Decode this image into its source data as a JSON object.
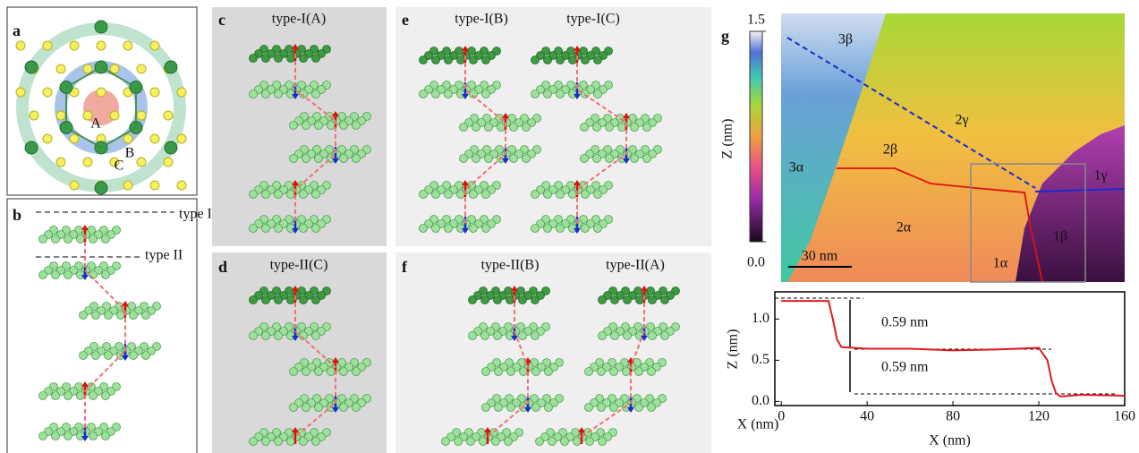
{
  "panels": {
    "a": {
      "label": "a",
      "sites": [
        "A",
        "B",
        "C"
      ]
    },
    "b": {
      "label": "b",
      "lines": [
        "type I",
        "type II"
      ]
    },
    "c": {
      "label": "c",
      "title": "type-I(A)"
    },
    "d": {
      "label": "d",
      "title": "type-II(C)"
    },
    "e": {
      "label": "e",
      "titles": [
        "type-I(B)",
        "type-I(C)"
      ]
    },
    "f": {
      "label": "f",
      "titles": [
        "type-II(B)",
        "type-II(A)"
      ]
    },
    "g": {
      "label": "g",
      "colorbar": {
        "label": "Z (nm)",
        "ticks": [
          {
            "value": 0,
            "label": "0.0"
          },
          1.5
        ]
      },
      "regions": [
        "3β",
        "2γ",
        "2β",
        "3α",
        "1γ",
        "2α",
        "1β",
        "1α"
      ],
      "scale_bar": "30 nm"
    }
  },
  "chart_data": {
    "type": "line",
    "xlabel": "X (nm)",
    "ylabel": "Z (nm)",
    "x": [
      0,
      22,
      24,
      26,
      28,
      40,
      60,
      80,
      100,
      120,
      124,
      126,
      128,
      130,
      140,
      160
    ],
    "series": [
      {
        "color": "#e0191e",
        "values": [
          1.22,
          1.22,
          1.0,
          0.75,
          0.66,
          0.64,
          0.64,
          0.62,
          0.63,
          0.65,
          0.5,
          0.25,
          0.1,
          0.06,
          0.08,
          0.07
        ]
      }
    ],
    "xlim": [
      -3,
      160
    ],
    "ylim": [
      -0.05,
      1.33
    ],
    "xticks": [
      0,
      40,
      80,
      120,
      160
    ],
    "yticks": [
      {
        "value": 0,
        "label": "0.0"
      },
      0.5,
      {
        "value": 1,
        "label": "1.0"
      }
    ],
    "annotations": [
      "0.59 nm",
      "0.59 nm"
    ]
  }
}
